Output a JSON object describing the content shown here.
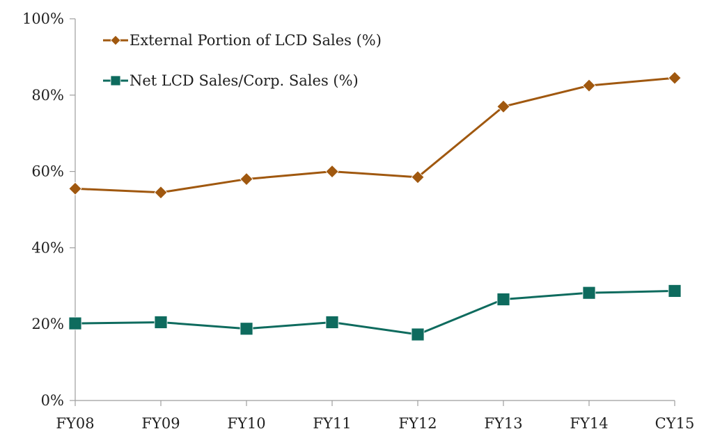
{
  "chart_data": {
    "type": "line",
    "title": "",
    "xlabel": "",
    "ylabel": "",
    "categories": [
      "FY08",
      "FY09",
      "FY10",
      "FY11",
      "FY12",
      "FY13",
      "FY14",
      "CY15"
    ],
    "ylim": [
      0,
      100
    ],
    "yticks": [
      0,
      20,
      40,
      60,
      80,
      100
    ],
    "ytick_labels": [
      "0%",
      "20%",
      "40%",
      "60%",
      "80%",
      "100%"
    ],
    "grid": false,
    "legend_position": "top-left",
    "series": [
      {
        "name": "External Portion of LCD Sales (%)",
        "color": "#A0580F",
        "marker": "diamond",
        "values": [
          55.5,
          54.5,
          58,
          60,
          58.5,
          77,
          82.5,
          84.5
        ]
      },
      {
        "name": "Net LCD Sales/Corp. Sales (%)",
        "color": "#0E6B5E",
        "marker": "square",
        "values": [
          20.2,
          20.5,
          18.8,
          20.5,
          17.3,
          26.5,
          28.2,
          28.7
        ]
      }
    ]
  }
}
